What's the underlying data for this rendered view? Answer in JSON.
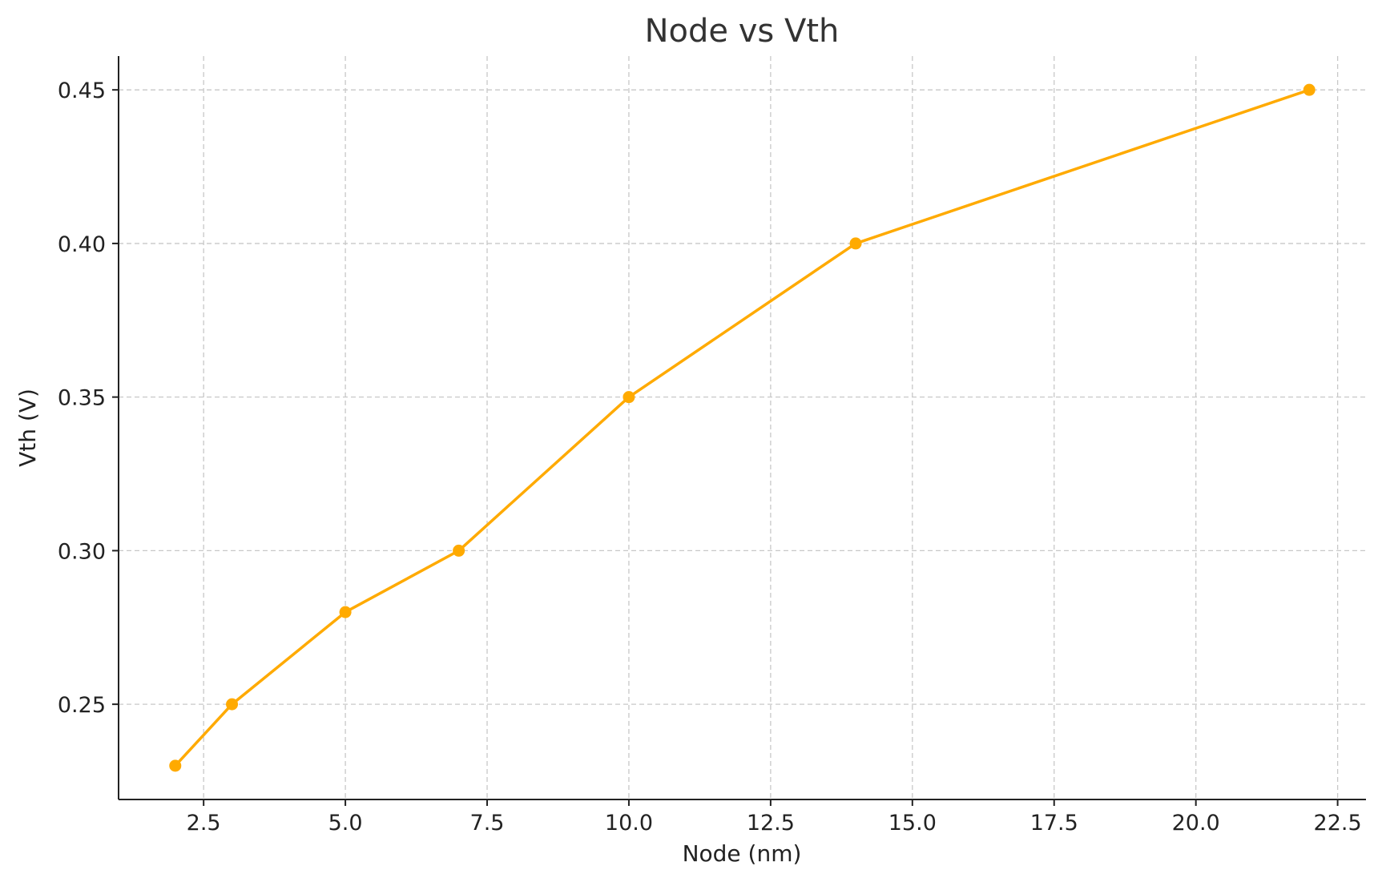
{
  "chart_data": {
    "type": "line",
    "title": "Node vs Vth",
    "xlabel": "Node (nm)",
    "ylabel": "Vth (V)",
    "xlim": [
      1.0,
      23.0
    ],
    "ylim": [
      0.219,
      0.461
    ],
    "xticks": [
      2.5,
      5.0,
      7.5,
      10.0,
      12.5,
      15.0,
      17.5,
      20.0,
      22.5
    ],
    "xtick_labels": [
      "2.5",
      "5.0",
      "7.5",
      "10.0",
      "12.5",
      "15.0",
      "17.5",
      "20.0",
      "22.5"
    ],
    "yticks": [
      0.25,
      0.3,
      0.35,
      0.4,
      0.45
    ],
    "ytick_labels": [
      "0.25",
      "0.30",
      "0.35",
      "0.40",
      "0.45"
    ],
    "grid": true,
    "color": "#FFAA00",
    "series": [
      {
        "x": [
          2,
          3,
          5,
          7,
          10,
          14,
          22
        ],
        "y": [
          0.23,
          0.25,
          0.28,
          0.3,
          0.35,
          0.4,
          0.45
        ]
      }
    ]
  }
}
